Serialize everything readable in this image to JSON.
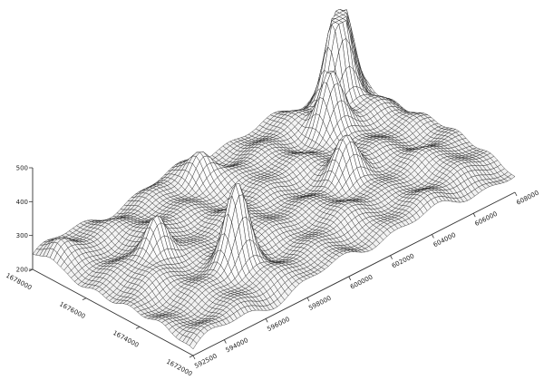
{
  "chart_data": {
    "type": "surface",
    "title": "",
    "xlabel": "",
    "ylabel": "",
    "zlabel": "",
    "grid": false,
    "legend": "none",
    "colors": {
      "background": "#ffffff",
      "mesh": "#262626",
      "surface_low": "#d0d0d0",
      "surface_high": "#fafafa",
      "axis": "#333333"
    },
    "x_ticks": [
      "592500",
      "594000",
      "596000",
      "598000",
      "600000",
      "602000",
      "604000",
      "606000",
      "608000"
    ],
    "x_range": [
      592500,
      608000
    ],
    "y_ticks": [
      "1678000",
      "1676000",
      "1674000",
      "1672000"
    ],
    "y_range": [
      1672000,
      1678000
    ],
    "z_ticks": [
      "200",
      "300",
      "400",
      "500"
    ],
    "z_range": [
      200,
      500
    ],
    "peaks": [
      {
        "x": 595100,
        "y": 1675400,
        "z": 395
      },
      {
        "x": 596800,
        "y": 1673700,
        "z": 470
      },
      {
        "x": 603200,
        "y": 1674600,
        "z": 355
      },
      {
        "x": 604900,
        "y": 1676500,
        "z": 430
      },
      {
        "x": 606300,
        "y": 1677300,
        "z": 520
      },
      {
        "x": 607000,
        "y": 1677700,
        "z": 495
      },
      {
        "x": 599500,
        "y": 1677200,
        "z": 335
      },
      {
        "x": 592900,
        "y": 1677400,
        "z": 300
      }
    ]
  }
}
